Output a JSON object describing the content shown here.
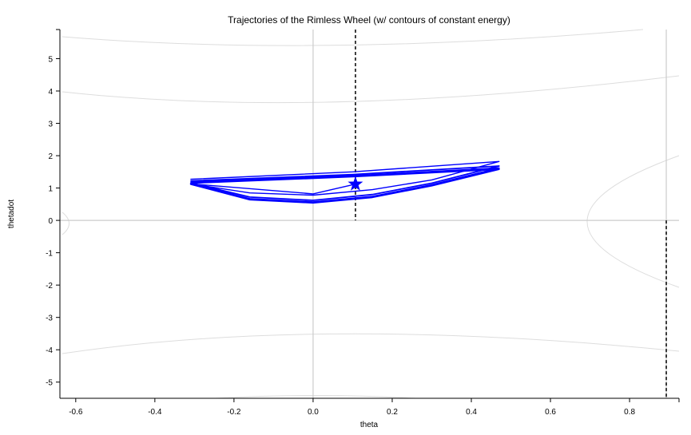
{
  "chart_data": {
    "type": "line",
    "title": "Trajectories of the Rimless Wheel (w/ contours of constant energy)",
    "xlabel": "theta",
    "ylabel": "thetadot",
    "xlim": [
      -0.64,
      0.925
    ],
    "ylim": [
      -5.5,
      5.9
    ],
    "xticks": [
      -0.6,
      -0.4,
      -0.2,
      0.0,
      0.2,
      0.4,
      0.6,
      0.8
    ],
    "xtick_labels": [
      "-0.6",
      "-0.4",
      "-0.2",
      "0.0",
      "0.2",
      "0.4",
      "0.6",
      "0.8"
    ],
    "yticks": [
      -5,
      -4,
      -3,
      -2,
      -1,
      0,
      1,
      2,
      3,
      4,
      5
    ],
    "ytick_labels": [
      "-5",
      "-4",
      "-3",
      "-2",
      "-1",
      "0",
      "1",
      "2",
      "3",
      "4",
      "5"
    ],
    "grid": false,
    "reference_lines": {
      "vertical_solid": [
        0.0,
        0.8928
      ],
      "horizontal_solid": [
        0.0
      ],
      "vertical_dashed": [
        {
          "x": 0.1071,
          "y_from": 0.0,
          "y_to": 5.9
        },
        {
          "x": 0.8928,
          "y_from": -5.5,
          "y_to": 0.0
        }
      ]
    },
    "contours": {
      "color": "#dddddd",
      "description_levels": "energy contours"
    },
    "trajectory": {
      "color": "#0000ff",
      "loops": [
        {
          "x": [
            0.107,
            0.0,
            -0.31,
            -0.16,
            0.0,
            0.15,
            0.3,
            0.47,
            0.1,
            -0.31
          ],
          "y": [
            1.12,
            0.82,
            1.13,
            0.85,
            0.78,
            0.95,
            1.25,
            1.82,
            1.5,
            1.27
          ]
        },
        {
          "x": [
            -0.31,
            -0.16,
            0.0,
            0.15,
            0.3,
            0.47,
            0.1,
            -0.31
          ],
          "y": [
            1.16,
            0.72,
            0.62,
            0.8,
            1.15,
            1.68,
            1.42,
            1.22
          ]
        },
        {
          "x": [
            -0.31,
            -0.16,
            0.0,
            0.15,
            0.3,
            0.47,
            0.1,
            -0.31
          ],
          "y": [
            1.14,
            0.67,
            0.57,
            0.74,
            1.1,
            1.62,
            1.38,
            1.18
          ]
        },
        {
          "x": [
            -0.31,
            -0.16,
            0.0,
            0.15,
            0.3,
            0.47,
            0.1,
            -0.31
          ],
          "y": [
            1.13,
            0.65,
            0.55,
            0.72,
            1.08,
            1.6,
            1.36,
            1.16
          ]
        },
        {
          "x": [
            -0.31,
            -0.16,
            0.0,
            0.15,
            0.3,
            0.47,
            0.1,
            -0.31
          ],
          "y": [
            1.12,
            0.64,
            0.54,
            0.71,
            1.07,
            1.58,
            1.35,
            1.15
          ]
        }
      ]
    },
    "marker": {
      "shape": "star",
      "x": 0.107,
      "y": 1.12,
      "color": "#0000ff"
    }
  }
}
